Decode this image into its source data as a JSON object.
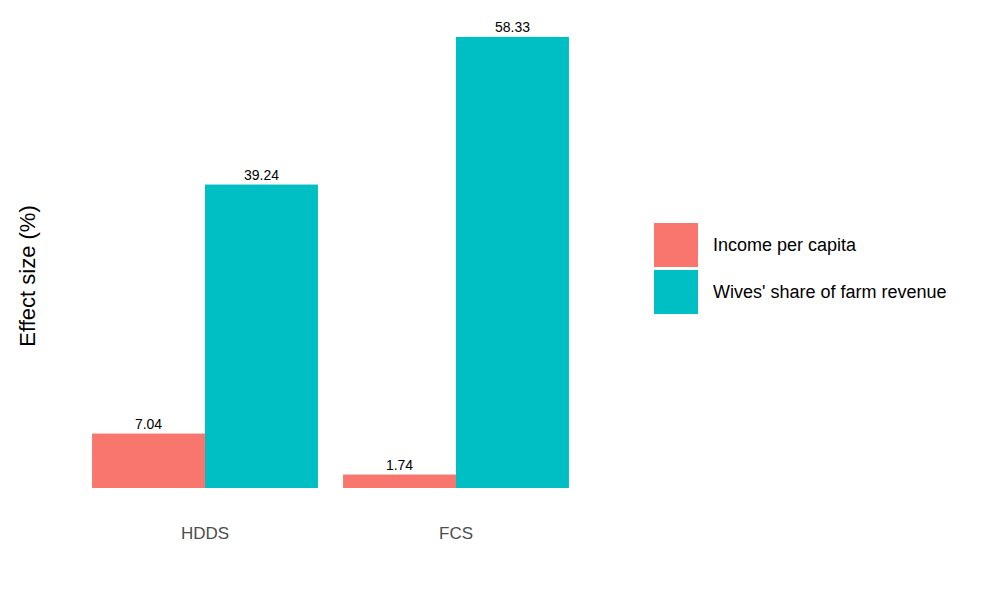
{
  "chart_data": {
    "type": "bar",
    "y_label": "Effect size (%)",
    "categories": [
      "HDDS",
      "FCS"
    ],
    "series": [
      {
        "name": "Income per capita",
        "color": "#F8766D",
        "values": [
          7.04,
          1.74
        ]
      },
      {
        "name": "Wives' share of farm revenue",
        "color": "#00BFC4",
        "values": [
          39.24,
          58.33
        ]
      }
    ],
    "ylim": [
      0,
      60
    ],
    "yticks": [],
    "grid": false,
    "data_labels": true,
    "tick_labels": "x",
    "legend": "right"
  }
}
